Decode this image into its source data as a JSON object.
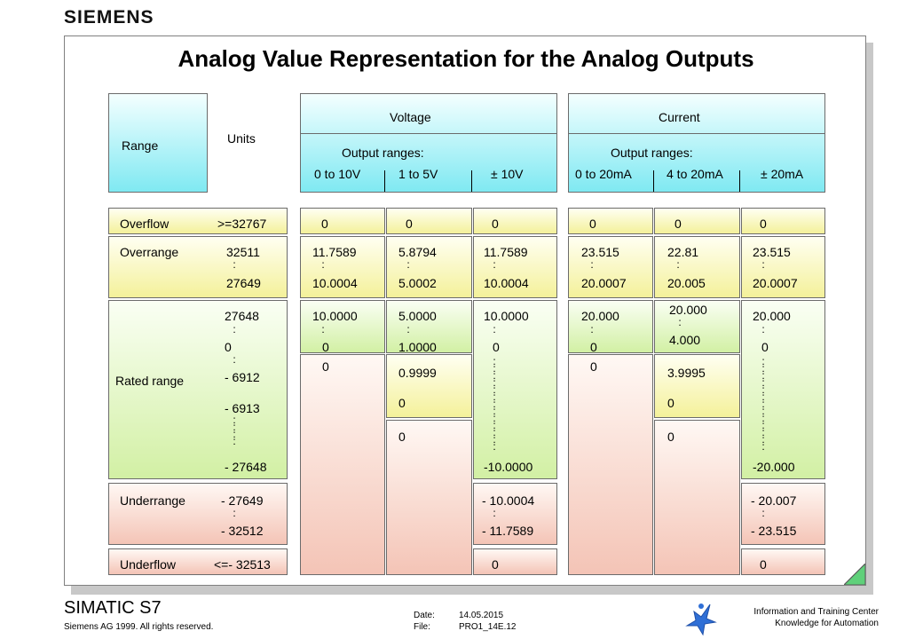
{
  "brand": "SIEMENS",
  "title": "Analog Value Representation for the Analog Outputs",
  "header": {
    "range": "Range",
    "units": "Units",
    "voltage": "Voltage",
    "current": "Current",
    "output_ranges": "Output ranges:",
    "voltage_ranges": [
      "0 to 10V",
      "1 to 5V",
      "± 10V"
    ],
    "current_ranges": [
      "0 to 20mA",
      "4 to 20mA",
      "± 20mA"
    ]
  },
  "rows": {
    "overflow": "Overflow",
    "overrange": "Overrange",
    "rated": "Rated range",
    "underrange": "Underrange",
    "underflow": "Underflow"
  },
  "units": {
    "overflow": ">=32767",
    "over_hi": "32511",
    "over_lo": "27649",
    "rated_1": "27648",
    "rated_2": "0",
    "rated_3": "- 6912",
    "rated_4": "- 6913",
    "rated_5": "- 27648",
    "under_hi": "- 27649",
    "under_lo": "- 32512",
    "underflow": "<=- 32513"
  },
  "v0_10": {
    "overflow": "0",
    "over_hi": "11.7589",
    "over_lo": "10.0004",
    "rated_hi": "10.0000",
    "rated_mid": "0",
    "rated_lo": "0"
  },
  "v1_5": {
    "overflow": "0",
    "over_hi": "5.8794",
    "over_lo": "5.0002",
    "rated_hi": "5.0000",
    "rated_lo": "1.0000",
    "under_hi": "0.9999",
    "under_lo": "0",
    "underflow": "0"
  },
  "v10": {
    "overflow": "0",
    "over_hi": "11.7589",
    "over_lo": "10.0004",
    "rated_hi": "10.0000",
    "rated_mid": "0",
    "rated_lo": "-10.0000",
    "under_hi": "- 10.0004",
    "under_lo": "- 11.7589",
    "underflow": "0"
  },
  "c0_20": {
    "overflow": "0",
    "over_hi": "23.515",
    "over_lo": "20.0007",
    "rated_hi": "20.000",
    "rated_mid": "0",
    "rated_lo": "0"
  },
  "c4_20": {
    "overflow": "0",
    "over_hi": "22.81",
    "over_lo": "20.005",
    "rated_hi": "20.000",
    "rated_lo": "4.000",
    "under_hi": "3.9995",
    "under_lo": "0",
    "underflow": "0"
  },
  "c20": {
    "overflow": "0",
    "over_hi": "23.515",
    "over_lo": "20.0007",
    "rated_hi": "20.000",
    "rated_mid": "0",
    "rated_lo": "-20.000",
    "under_hi": "- 20.007",
    "under_lo": "- 23.515",
    "underflow": "0"
  },
  "footer": {
    "product": "SIMATIC S7",
    "copyright": "Siemens AG 1999. All rights reserved.",
    "date_label": "Date:",
    "date_value": "14.05.2015",
    "file_label": "File:",
    "file_value": "PRO1_14E.12",
    "center_1": "Information and Training Center",
    "center_2": "Knowledge for Automation"
  },
  "colors": {
    "header": "#7fe9f2",
    "overflow": "#f4f19a",
    "rated": "#d2f0a4",
    "low": "#f4c4b6"
  }
}
